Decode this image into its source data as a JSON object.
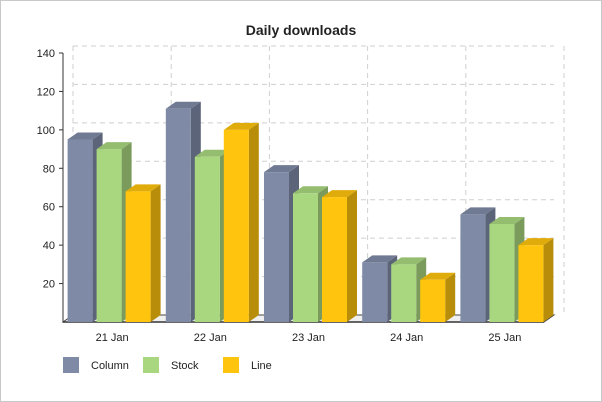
{
  "chart_data": {
    "type": "bar",
    "title": "Daily downloads",
    "xlabel": "",
    "ylabel": "",
    "categories": [
      "21 Jan",
      "22 Jan",
      "23 Jan",
      "24 Jan",
      "25 Jan"
    ],
    "series": [
      {
        "name": "Column",
        "values": [
          95,
          111,
          78,
          31,
          56
        ],
        "color": "#7f8ba6"
      },
      {
        "name": "Stock",
        "values": [
          90,
          86,
          67,
          30,
          51
        ],
        "color": "#a9d77f"
      },
      {
        "name": "Line",
        "values": [
          68,
          100,
          65,
          22,
          40
        ],
        "color": "#ffc40d"
      }
    ],
    "ylim": [
      0,
      140
    ],
    "yticks": [
      20,
      40,
      60,
      80,
      100,
      120,
      140
    ],
    "grid": true,
    "legend_position": "bottom-left",
    "style": "3d"
  }
}
